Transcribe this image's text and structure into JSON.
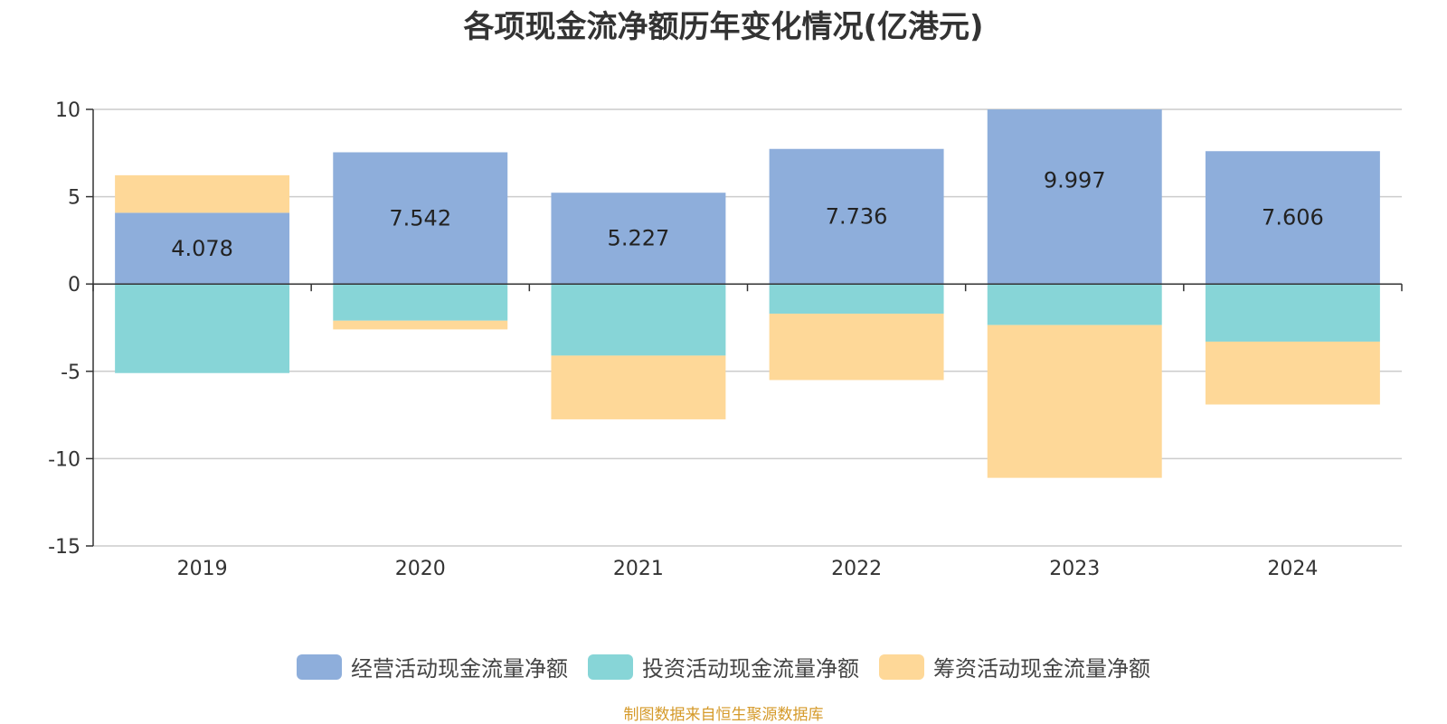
{
  "chart_data": {
    "type": "bar",
    "stacked": true,
    "title": "各项现金流净额历年变化情况(亿港元)",
    "categories": [
      "2019",
      "2020",
      "2021",
      "2022",
      "2023",
      "2024"
    ],
    "ylim": [
      -15,
      10
    ],
    "yticks": [
      10,
      5,
      0,
      -5,
      -10,
      -15
    ],
    "ytick_labels": [
      "10",
      "5",
      "0",
      "-5",
      "-10",
      "-15"
    ],
    "grid": true,
    "legend_position": "bottom",
    "series": [
      {
        "name": "经营活动现金流量净额",
        "color": "#8eaedb",
        "values": [
          4.078,
          7.542,
          5.227,
          7.736,
          9.997,
          7.606
        ],
        "labels": [
          "4.078",
          "7.542",
          "5.227",
          "7.736",
          "9.997",
          "7.606"
        ]
      },
      {
        "name": "投资活动现金流量净额",
        "color": "#87d5d7",
        "values": [
          -5.1,
          -2.1,
          -4.1,
          -1.7,
          -2.35,
          -3.3
        ]
      },
      {
        "name": "筹资活动现金流量净额",
        "color": "#fed898",
        "values": [
          2.15,
          -0.5,
          -3.65,
          -3.8,
          -8.75,
          -3.6
        ]
      }
    ]
  },
  "source_note": "制图数据来自恒生聚源数据库"
}
